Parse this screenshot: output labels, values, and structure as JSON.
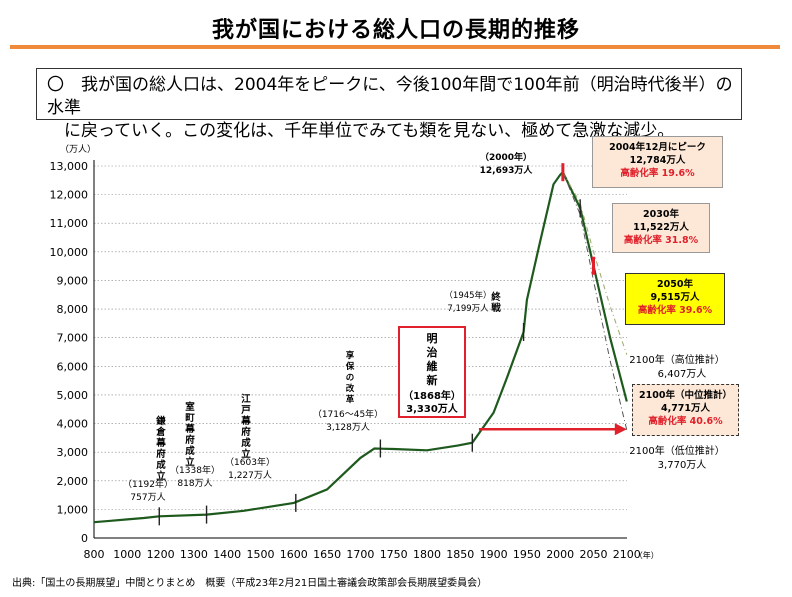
{
  "title": "我が国における総人口の長期的推移",
  "summary": {
    "line1": "〇　我が国の総人口は、2004年をピークに、今後100年間で100年前（明治時代後半）の水準",
    "line2": "　に戻っていく。この変化は、千年単位でみても類を見ない、極めて急激な減少。"
  },
  "source": "出典:「国土の長期展望」中間とりまとめ　概要（平成23年2月21日国土審議会政策部会長期展望委員会）",
  "colors": {
    "line": "#1e5a1e",
    "accent_red": "#e0202a",
    "title_rule": "#ef8a3c",
    "highlight_yellow": "#ffff00",
    "box_peach": "#fde8d8"
  },
  "chart_data": {
    "type": "line",
    "yunit": "（万人）",
    "xunit": "（年）",
    "xlim": [
      800,
      2100
    ],
    "ylim": [
      0,
      13000
    ],
    "x_ticks": [
      "800",
      "1000",
      "1200",
      "1300",
      "1400",
      "1500",
      "1600",
      "1650",
      "1700",
      "1750",
      "1800",
      "1850",
      "1900",
      "1950",
      "2000",
      "2050",
      "2100"
    ],
    "y_ticks": [
      "0",
      "1,000",
      "2,000",
      "3,000",
      "4,000",
      "5,000",
      "6,000",
      "7,000",
      "8,000",
      "9,000",
      "10,000",
      "11,000",
      "12,000",
      "13,000"
    ],
    "series": [
      {
        "key": "historical",
        "values": [
          [
            800,
            551
          ],
          [
            900,
            600
          ],
          [
            1000,
            650
          ],
          [
            1100,
            700
          ],
          [
            1192,
            757
          ],
          [
            1338,
            818
          ],
          [
            1450,
            950
          ],
          [
            1600,
            1227
          ],
          [
            1650,
            1700
          ],
          [
            1700,
            2800
          ],
          [
            1721,
            3128
          ],
          [
            1750,
            3110
          ],
          [
            1800,
            3065
          ],
          [
            1846,
            3230
          ],
          [
            1868,
            3330
          ],
          [
            1900,
            4384
          ],
          [
            1920,
            5596
          ],
          [
            1945,
            7199
          ],
          [
            1950,
            8320
          ],
          [
            1970,
            10372
          ],
          [
            1990,
            12361
          ],
          [
            2000,
            12693
          ],
          [
            2004,
            12784
          ]
        ]
      },
      {
        "key": "projection_mid",
        "values": [
          [
            2004,
            12784
          ],
          [
            2030,
            11522
          ],
          [
            2050,
            9515
          ],
          [
            2075,
            7000
          ],
          [
            2100,
            4771
          ]
        ]
      },
      {
        "key": "projection_high",
        "values": [
          [
            2004,
            12784
          ],
          [
            2030,
            11700
          ],
          [
            2050,
            10000
          ],
          [
            2075,
            8100
          ],
          [
            2100,
            6407
          ]
        ]
      },
      {
        "key": "projection_low",
        "values": [
          [
            2004,
            12784
          ],
          [
            2030,
            11300
          ],
          [
            2050,
            9000
          ],
          [
            2075,
            6200
          ],
          [
            2100,
            3770
          ]
        ]
      }
    ],
    "annotations": {
      "kamakura": {
        "label": "鎌倉幕府成立",
        "sub": "（1192年）",
        "val": "757万人"
      },
      "muromachi": {
        "label": "室町幕府成立",
        "sub": "（1338年）",
        "val": "818万人"
      },
      "edo": {
        "label": "江戸幕府成立",
        "sub": "（1603年）",
        "val": "1,227万人"
      },
      "kyoho": {
        "label": "享保の改革",
        "sub": "（1716～45年）",
        "val": "3,128万人"
      },
      "meiji": {
        "label": "明治維新",
        "sub": "（1868年）",
        "val": "3,330万人"
      },
      "war_end": {
        "label": "終戦",
        "sub": "（1945年）",
        "val": "7,199万人"
      },
      "y2000": {
        "sub": "（2000年）",
        "val": "12,693万人"
      },
      "peak": {
        "line1": "2004年12月にピーク",
        "line2": "12,784万人",
        "line3": "高齢化率 19.6%"
      },
      "y2030": {
        "line1": "2030年",
        "line2": "11,522万人",
        "line3": "高齢化率 31.8%"
      },
      "y2050": {
        "line1": "2050年",
        "line2": "9,515万人",
        "line3": "高齢化率 39.6%"
      },
      "high2100": {
        "line1": "2100年（高位推計）",
        "line2": "6,407万人"
      },
      "mid2100": {
        "line1": "2100年（中位推計）",
        "line2": "4,771万人",
        "line3": "高齢化率 40.6%"
      },
      "low2100": {
        "line1": "2100年（低位推計）",
        "line2": "3,770万人"
      }
    }
  }
}
